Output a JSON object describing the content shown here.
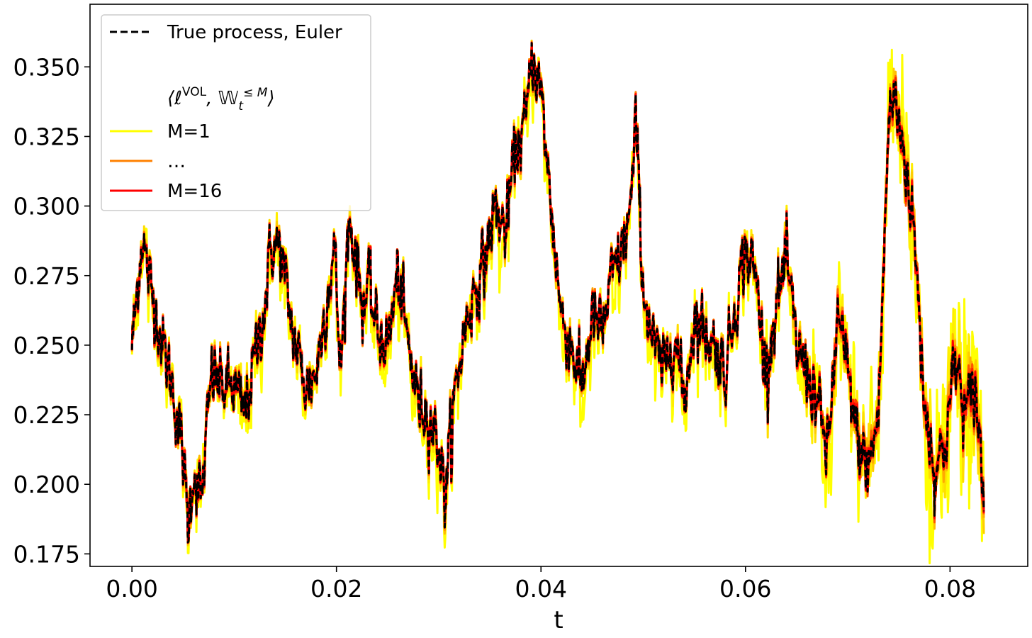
{
  "chart_data": {
    "type": "line",
    "title": "",
    "xlabel": "t",
    "ylabel": "",
    "xlim": [
      -0.0041,
      0.0876
    ],
    "ylim": [
      0.1705,
      0.3725
    ],
    "xticks": [
      0.0,
      0.02,
      0.04,
      0.06,
      0.08
    ],
    "xtick_labels": [
      "0.00",
      "0.02",
      "0.04",
      "0.06",
      "0.08"
    ],
    "yticks": [
      0.175,
      0.2,
      0.225,
      0.25,
      0.275,
      0.3,
      0.325,
      0.35
    ],
    "ytick_labels": [
      "0.175",
      "0.200",
      "0.225",
      "0.250",
      "0.275",
      "0.300",
      "0.325",
      "0.350"
    ],
    "grid": false,
    "legend_position": "top-left",
    "colors": {
      "true_process": "#000000",
      "m1": "#ffff00",
      "mid": "#ff8000",
      "m16": "#ff0000"
    },
    "legend": {
      "true_process_label": "True process, Euler",
      "heading": "⟨ℓ^VOL, Ŵ_t^{≤M}⟩",
      "heading_prefix": "⟨ℓ",
      "heading_sup": "VOL",
      "heading_mid": ", 𝕎",
      "heading_sub": "t",
      "heading_sup2": "≤ M",
      "heading_suffix": "⟩",
      "m1_label": "M=1",
      "mid_label": "…",
      "m16_label": "M=16"
    },
    "t_end": 0.0833,
    "key_points": {
      "t": [
        0.0,
        0.0004,
        0.001,
        0.0016,
        0.0022,
        0.003,
        0.004,
        0.005,
        0.0055,
        0.006,
        0.0068,
        0.0078,
        0.009,
        0.01,
        0.011,
        0.012,
        0.013,
        0.0136,
        0.0145,
        0.0155,
        0.016,
        0.017,
        0.018,
        0.019,
        0.0198,
        0.0204,
        0.0212,
        0.0218,
        0.0225,
        0.0232,
        0.024,
        0.025,
        0.026,
        0.027,
        0.028,
        0.029,
        0.03,
        0.0306,
        0.0315,
        0.0325,
        0.0335,
        0.0345,
        0.0355,
        0.0365,
        0.0375,
        0.0385,
        0.0392,
        0.04,
        0.041,
        0.042,
        0.043,
        0.044,
        0.045,
        0.046,
        0.047,
        0.048,
        0.0488,
        0.0493,
        0.05,
        0.051,
        0.052,
        0.053,
        0.054,
        0.055,
        0.056,
        0.057,
        0.058,
        0.059,
        0.06,
        0.061,
        0.062,
        0.063,
        0.064,
        0.065,
        0.066,
        0.067,
        0.068,
        0.069,
        0.07,
        0.071,
        0.072,
        0.073,
        0.074,
        0.0745,
        0.0755,
        0.0765,
        0.0775,
        0.0785,
        0.0795,
        0.0805,
        0.0815,
        0.0825,
        0.0833
      ],
      "y": [
        0.25,
        0.265,
        0.29,
        0.275,
        0.265,
        0.25,
        0.235,
        0.21,
        0.185,
        0.205,
        0.195,
        0.24,
        0.235,
        0.235,
        0.225,
        0.245,
        0.265,
        0.285,
        0.285,
        0.26,
        0.25,
        0.235,
        0.24,
        0.265,
        0.285,
        0.24,
        0.295,
        0.285,
        0.265,
        0.27,
        0.255,
        0.25,
        0.275,
        0.25,
        0.23,
        0.225,
        0.215,
        0.195,
        0.23,
        0.255,
        0.27,
        0.28,
        0.3,
        0.29,
        0.32,
        0.33,
        0.355,
        0.34,
        0.3,
        0.26,
        0.25,
        0.235,
        0.26,
        0.255,
        0.275,
        0.285,
        0.3,
        0.33,
        0.27,
        0.25,
        0.24,
        0.255,
        0.23,
        0.26,
        0.255,
        0.25,
        0.24,
        0.265,
        0.285,
        0.275,
        0.24,
        0.265,
        0.28,
        0.25,
        0.24,
        0.23,
        0.21,
        0.26,
        0.24,
        0.215,
        0.205,
        0.225,
        0.33,
        0.34,
        0.32,
        0.29,
        0.23,
        0.205,
        0.215,
        0.245,
        0.225,
        0.235,
        0.195
      ],
      "note": "Volatility path sampled from the figure."
    },
    "series": [
      {
        "name": "True process, Euler",
        "style": "dashed",
        "color": "#000000"
      },
      {
        "name": "M=1",
        "style": "solid",
        "color": "#ffff00"
      },
      {
        "name": "…",
        "style": "solid",
        "color": "#ff8000"
      },
      {
        "name": "M=16",
        "style": "solid",
        "color": "#ff0000"
      }
    ]
  }
}
